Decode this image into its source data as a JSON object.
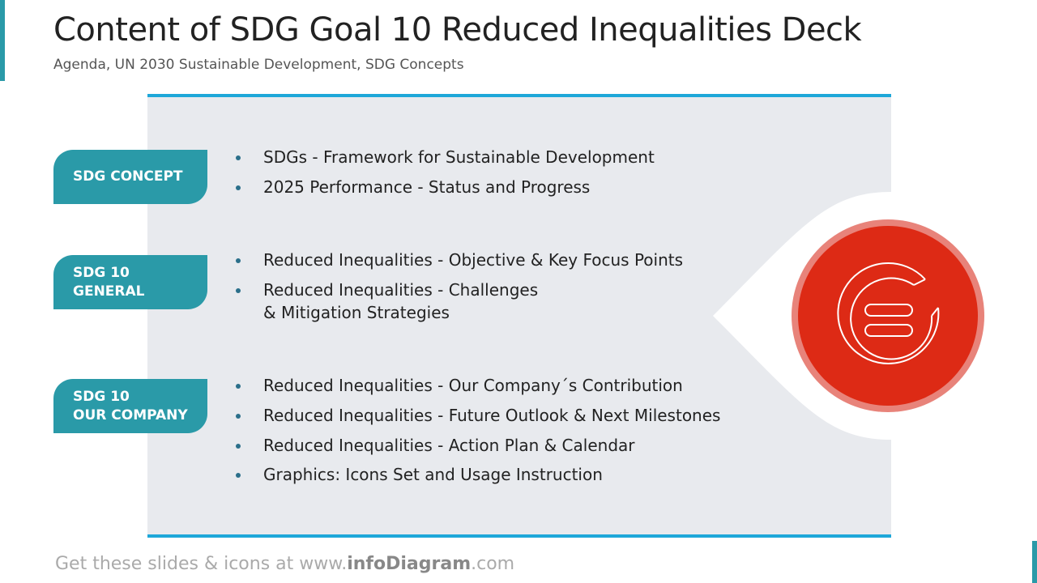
{
  "header": {
    "title": "Content of SDG Goal 10 Reduced Inequalities Deck",
    "subtitle": "Agenda, UN 2030 Sustainable Development, SDG Concepts"
  },
  "sections": [
    {
      "label": "SDG CONCEPT",
      "items": [
        "SDGs - Framework for Sustainable Development",
        "2025 Performance - Status and Progress"
      ]
    },
    {
      "label": "SDG 10\nGENERAL",
      "items": [
        "Reduced Inequalities  - Objective & Key Focus Points",
        "Reduced Inequalities - Challenges\n& Mitigation Strategies"
      ]
    },
    {
      "label": "SDG 10\nOUR COMPANY",
      "items": [
        "Reduced Inequalities - Our Company´s Contribution",
        "Reduced Inequalities - Future Outlook & Next Milestones",
        "Reduced Inequalities - Action Plan & Calendar",
        "Graphics: Icons Set and Usage Instruction"
      ]
    }
  ],
  "footer": {
    "prefix": "Get these slides & icons at www.",
    "brand": "infoDiagram",
    "suffix": ".com"
  }
}
